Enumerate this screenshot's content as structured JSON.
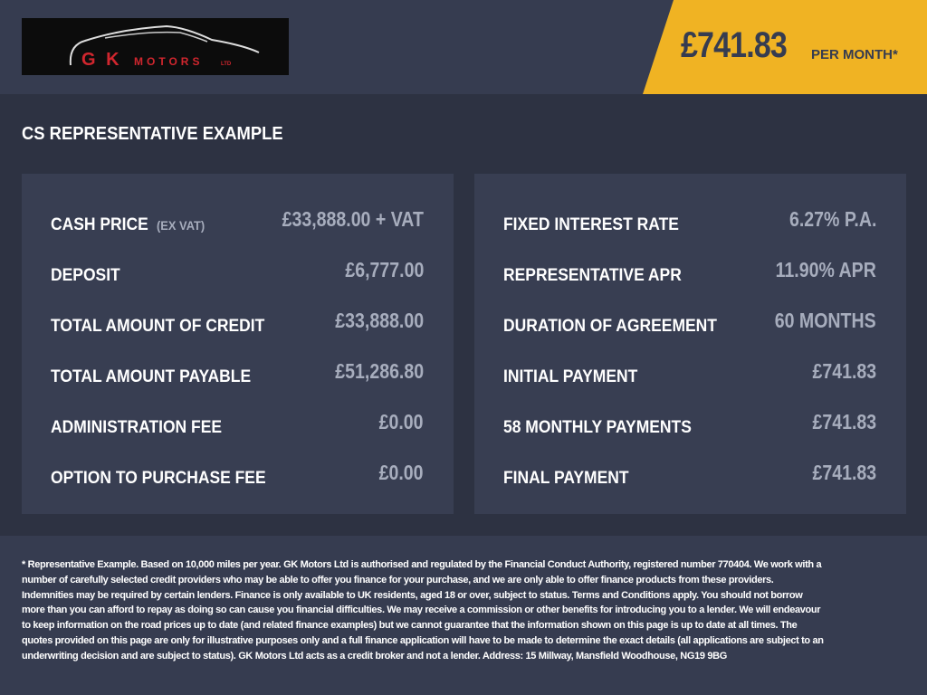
{
  "logo": {
    "text": "GK MOTORS LTD"
  },
  "header": {
    "price": "£741.83",
    "per_month": "PER MONTH*",
    "accent": "#f0b323"
  },
  "section_title": "CS REPRESENTATIVE EXAMPLE",
  "left_panel": [
    {
      "label": "CASH PRICE",
      "sublabel": "(EX VAT)",
      "value": "£33,888.00 + VAT"
    },
    {
      "label": "DEPOSIT",
      "value": "£6,777.00"
    },
    {
      "label": "TOTAL AMOUNT OF CREDIT",
      "value": "£33,888.00"
    },
    {
      "label": "TOTAL AMOUNT PAYABLE",
      "value": "£51,286.80"
    },
    {
      "label": "ADMINISTRATION FEE",
      "value": "£0.00"
    },
    {
      "label": "OPTION TO PURCHASE FEE",
      "value": "£0.00"
    }
  ],
  "right_panel": [
    {
      "label": "FIXED INTEREST RATE",
      "value": "6.27% P.A."
    },
    {
      "label": "REPRESENTATIVE APR",
      "value": "11.90% APR"
    },
    {
      "label": "DURATION OF AGREEMENT",
      "value": "60 MONTHS"
    },
    {
      "label": "INITIAL PAYMENT",
      "value": "£741.83"
    },
    {
      "label": "58 MONTHLY PAYMENTS",
      "value": "£741.83"
    },
    {
      "label": "FINAL PAYMENT",
      "value": "£741.83"
    }
  ],
  "disclaimer": "* Representative Example. Based on 10,000 miles per year. GK Motors Ltd is authorised and regulated by the Financial Conduct Authority, registered number 770404. We work with a number of carefully selected credit providers who may be able to offer you finance for your purchase, and we are only able to offer finance products from these providers. Indemnities may be required by certain lenders. Finance is only available to UK residents, aged 18 or over, subject to status. Terms and Conditions apply. You should not borrow more than you can afford to repay as doing so can cause you financial difficulties. We may receive a commission or other benefits for introducing you to a lender. We will endeavour to keep information on the road prices up to date (and related finance examples) but we cannot guarantee that the information shown on this page is up to date at all times. The quotes provided on this page are only for illustrative purposes only and a full finance application will have to be made to determine the exact details (all applications are subject to an underwriting decision and are subject to status). GK Motors Ltd acts as a credit broker and not a lender. Address: 15 Millway, Mansfield Woodhouse, NG19 9BG"
}
